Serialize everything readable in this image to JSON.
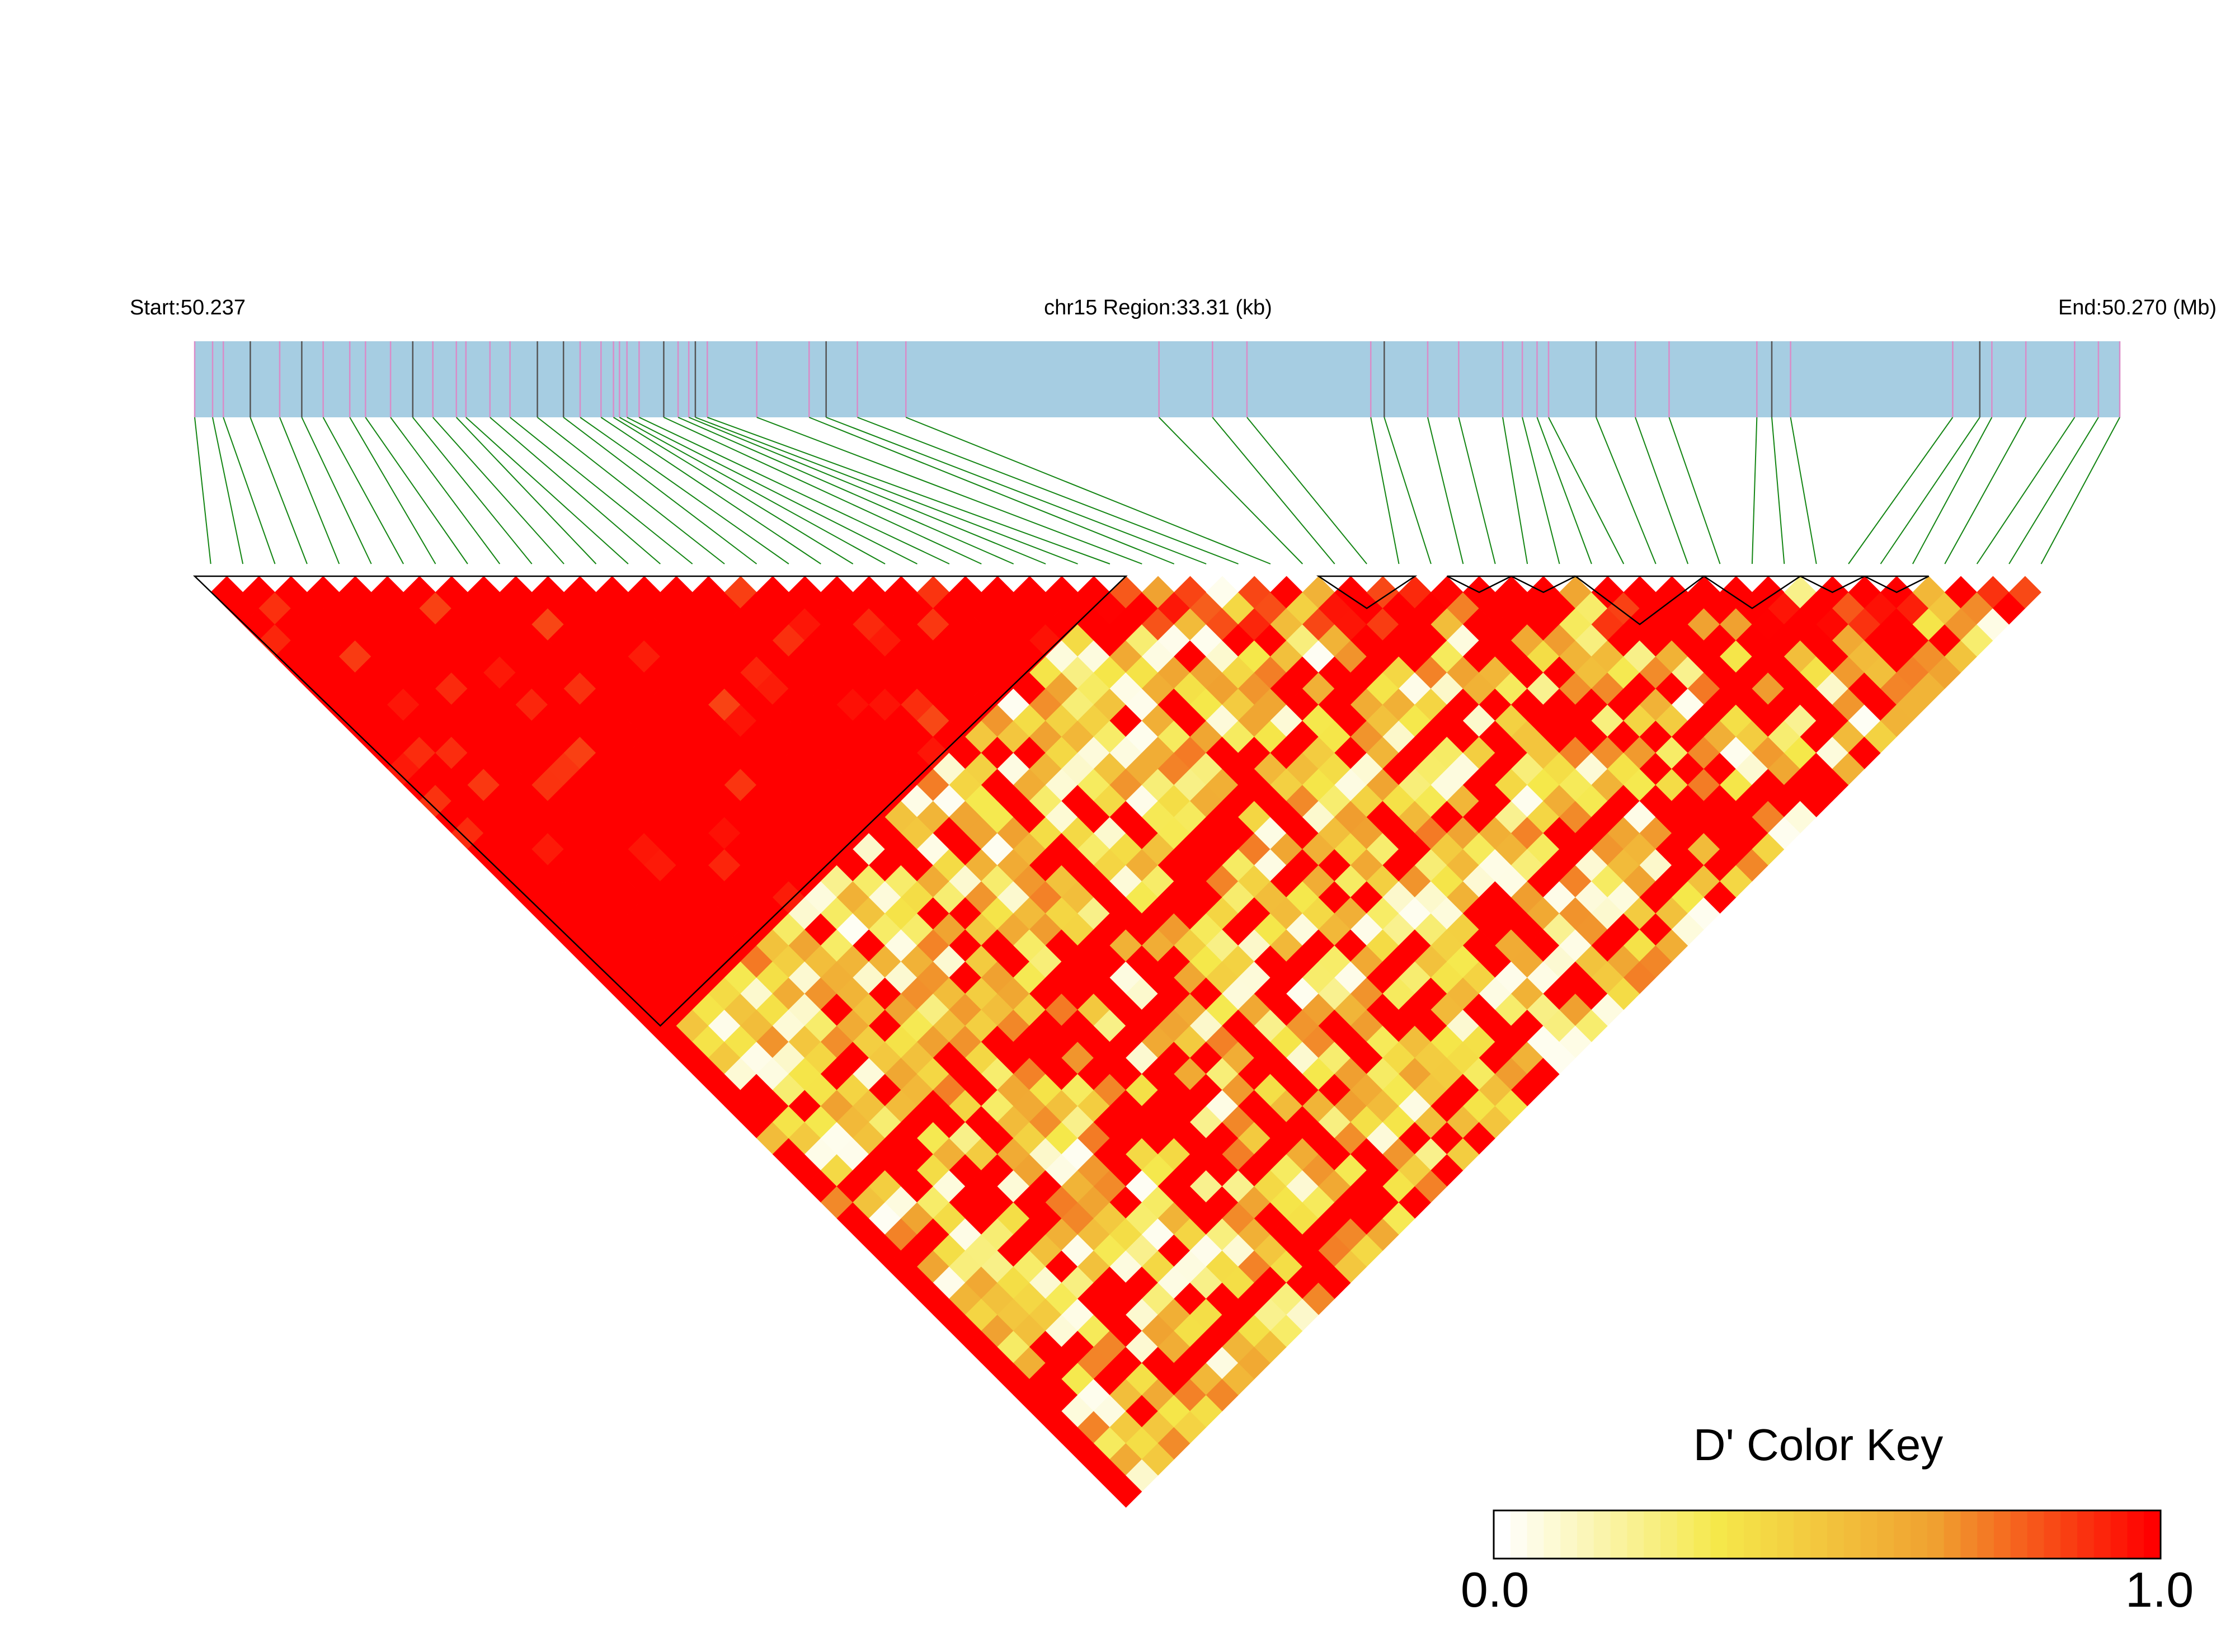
{
  "header": {
    "start_label": "Start:50.237",
    "region_label": "chr15 Region:33.31 (kb)",
    "end_label": "End:50.270 (Mb)"
  },
  "chart_data": {
    "type": "heatmap",
    "chromosome": "chr15",
    "start_mb": 50.237,
    "end_mb": 50.27,
    "region_kb": 33.31,
    "snp_count": 58,
    "ld_blocks": [
      {
        "first": 1,
        "last": 29
      },
      {
        "first": 36,
        "last": 38
      },
      {
        "first": 40,
        "last": 41
      },
      {
        "first": 42,
        "last": 43
      },
      {
        "first": 44,
        "last": 47
      },
      {
        "first": 48,
        "last": 50
      },
      {
        "first": 51,
        "last": 52
      },
      {
        "first": 53,
        "last": 54
      }
    ],
    "color_key": {
      "title": "D' Color Key",
      "min_label": "0.0",
      "max_label": "1.0",
      "min": 0.0,
      "max": 1.0,
      "steps": 40,
      "colors": [
        "#ffffff",
        "#f5e84a",
        "#f0a030",
        "#ff0000"
      ]
    },
    "colors": {
      "track_fill": "#a6cde2",
      "snp_tick_pink": "#d98cc8",
      "snp_tick_gray": "#555555",
      "connector": "#138513",
      "block_outline": "#000000"
    }
  }
}
